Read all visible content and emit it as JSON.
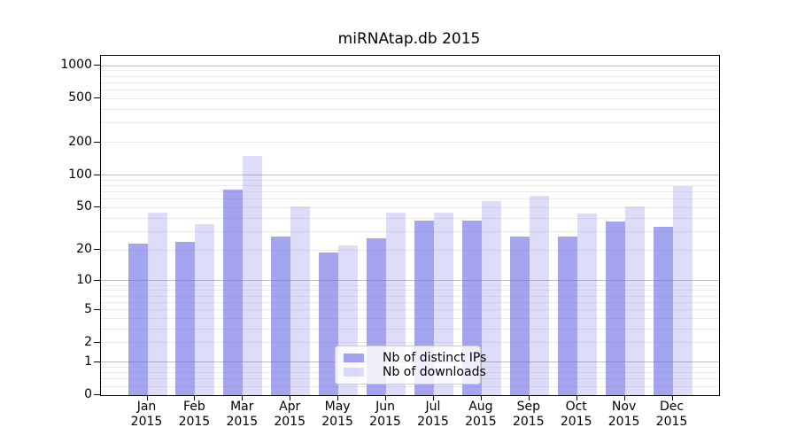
{
  "title": "miRNAtap.db 2015",
  "chart_data": {
    "type": "bar",
    "title": "miRNAtap.db 2015",
    "categories": [
      "Jan 2015",
      "Feb 2015",
      "Mar 2015",
      "Apr 2015",
      "May 2015",
      "Jun 2015",
      "Jul 2015",
      "Aug 2015",
      "Sep 2015",
      "Oct 2015",
      "Nov 2015",
      "Dec 2015"
    ],
    "series": [
      {
        "name": "Nb of distinct IPs",
        "color": "rgba(98,98,228,0.58)",
        "values": [
          23,
          24,
          74,
          27,
          19,
          26,
          38,
          38,
          27,
          27,
          37,
          33
        ]
      },
      {
        "name": "Nb of downloads",
        "color": "rgba(98,98,228,0.22)",
        "values": [
          45,
          35,
          150,
          51,
          22,
          45,
          45,
          58,
          64,
          44,
          51,
          80
        ]
      }
    ],
    "xlabel": "",
    "ylabel": "",
    "yscale": "log1p",
    "ylim": [
      0,
      1230
    ],
    "yticks": [
      0,
      1,
      2,
      5,
      10,
      20,
      50,
      100,
      200,
      500,
      1000
    ],
    "ygrid_major": [
      1,
      10,
      100,
      1000
    ],
    "ygrid_minor": [
      0.2,
      0.4,
      0.6,
      0.8,
      2,
      3,
      4,
      5,
      6,
      7,
      8,
      9,
      20,
      30,
      40,
      50,
      60,
      70,
      80,
      90,
      200,
      300,
      400,
      500,
      600,
      700,
      800,
      900
    ],
    "grid": "horizontal major+minor",
    "legend_position": "lower center inside plot"
  },
  "colors": {
    "background": "#ffffff",
    "axis": "#000000",
    "grid_major": "#bdbdbd",
    "grid_minor": "#ebebeb",
    "bar_base": "#6262e4"
  }
}
